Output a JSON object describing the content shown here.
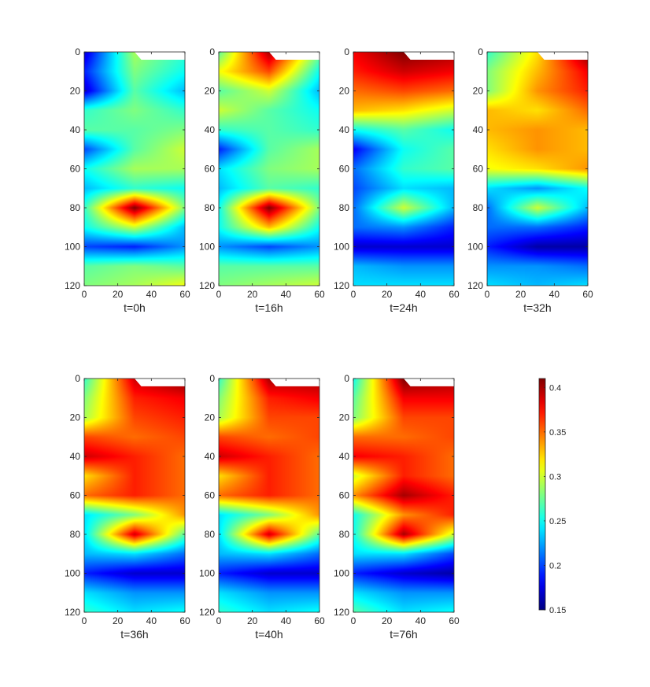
{
  "figure": {
    "colorbar": {
      "colormap": "jet",
      "min": 0.15,
      "max": 0.41,
      "ticks": [
        0.15,
        0.2,
        0.25,
        0.3,
        0.35,
        0.4
      ],
      "tick_labels": [
        "0.15",
        "0.2",
        "0.25",
        "0.3",
        "0.35",
        "0.4"
      ]
    }
  },
  "chart_data": [
    {
      "type": "heatmap",
      "panel": "t=0h",
      "title": "t=0h",
      "x": [
        0,
        30,
        60
      ],
      "y": [
        0,
        10,
        20,
        30,
        40,
        50,
        60,
        70,
        80,
        90,
        100,
        110,
        120
      ],
      "values": [
        [
          0.17,
          0.29,
          0.26
        ],
        [
          0.19,
          0.28,
          0.25
        ],
        [
          0.17,
          0.27,
          0.23
        ],
        [
          0.26,
          0.28,
          0.26
        ],
        [
          0.27,
          0.27,
          0.28
        ],
        [
          0.2,
          0.27,
          0.3
        ],
        [
          0.25,
          0.29,
          0.29
        ],
        [
          0.23,
          0.26,
          0.25
        ],
        [
          0.26,
          0.41,
          0.28
        ],
        [
          0.25,
          0.3,
          0.23
        ],
        [
          0.2,
          0.19,
          0.22
        ],
        [
          0.27,
          0.28,
          0.27
        ],
        [
          0.28,
          0.29,
          0.31
        ]
      ],
      "xlim": [
        0,
        60
      ],
      "ylim": [
        0,
        120
      ],
      "y_reversed": true,
      "xticks": [
        "0",
        "20",
        "40",
        "60"
      ],
      "yticks": [
        "0",
        "20",
        "40",
        "60",
        "80",
        "100",
        "120"
      ]
    },
    {
      "type": "heatmap",
      "panel": "t=16h",
      "title": "t=16h",
      "x": [
        0,
        30,
        60
      ],
      "y": [
        0,
        10,
        20,
        30,
        40,
        50,
        60,
        70,
        80,
        90,
        100,
        110,
        120
      ],
      "values": [
        [
          0.27,
          0.4,
          0.28
        ],
        [
          0.31,
          0.36,
          0.25
        ],
        [
          0.27,
          0.3,
          0.23
        ],
        [
          0.3,
          0.27,
          0.25
        ],
        [
          0.26,
          0.27,
          0.26
        ],
        [
          0.19,
          0.27,
          0.29
        ],
        [
          0.24,
          0.28,
          0.29
        ],
        [
          0.23,
          0.27,
          0.26
        ],
        [
          0.25,
          0.41,
          0.28
        ],
        [
          0.25,
          0.33,
          0.25
        ],
        [
          0.22,
          0.2,
          0.22
        ],
        [
          0.27,
          0.27,
          0.27
        ],
        [
          0.28,
          0.29,
          0.3
        ]
      ],
      "xlim": [
        0,
        60
      ],
      "ylim": [
        0,
        120
      ],
      "y_reversed": true,
      "xticks": [
        "0",
        "20",
        "40",
        "60"
      ],
      "yticks": [
        "0",
        "20",
        "40",
        "60",
        "80",
        "100",
        "120"
      ]
    },
    {
      "type": "heatmap",
      "panel": "t=24h",
      "title": "t=24h",
      "x": [
        0,
        30,
        60
      ],
      "y": [
        0,
        10,
        20,
        30,
        40,
        50,
        60,
        70,
        80,
        90,
        100,
        110,
        120
      ],
      "values": [
        [
          0.38,
          0.41,
          0.4
        ],
        [
          0.37,
          0.39,
          0.38
        ],
        [
          0.35,
          0.36,
          0.35
        ],
        [
          0.33,
          0.32,
          0.3
        ],
        [
          0.25,
          0.27,
          0.25
        ],
        [
          0.18,
          0.25,
          0.27
        ],
        [
          0.21,
          0.26,
          0.27
        ],
        [
          0.2,
          0.24,
          0.23
        ],
        [
          0.21,
          0.3,
          0.23
        ],
        [
          0.21,
          0.22,
          0.19
        ],
        [
          0.17,
          0.17,
          0.17
        ],
        [
          0.23,
          0.22,
          0.22
        ],
        [
          0.24,
          0.24,
          0.24
        ]
      ],
      "xlim": [
        0,
        60
      ],
      "ylim": [
        0,
        120
      ],
      "y_reversed": true,
      "xticks": [
        "0",
        "20",
        "40",
        "60"
      ],
      "yticks": [
        "0",
        "20",
        "40",
        "60",
        "80",
        "100",
        "120"
      ]
    },
    {
      "type": "heatmap",
      "panel": "t=32h",
      "title": "t=32h",
      "x": [
        0,
        30,
        60
      ],
      "y": [
        0,
        10,
        20,
        30,
        40,
        50,
        60,
        70,
        80,
        90,
        100,
        110,
        120
      ],
      "values": [
        [
          0.26,
          0.32,
          0.41
        ],
        [
          0.28,
          0.33,
          0.38
        ],
        [
          0.28,
          0.34,
          0.37
        ],
        [
          0.33,
          0.32,
          0.35
        ],
        [
          0.33,
          0.34,
          0.33
        ],
        [
          0.32,
          0.34,
          0.33
        ],
        [
          0.31,
          0.32,
          0.34
        ],
        [
          0.24,
          0.22,
          0.25
        ],
        [
          0.21,
          0.3,
          0.23
        ],
        [
          0.21,
          0.21,
          0.19
        ],
        [
          0.19,
          0.16,
          0.16
        ],
        [
          0.22,
          0.22,
          0.21
        ],
        [
          0.24,
          0.23,
          0.24
        ]
      ],
      "xlim": [
        0,
        60
      ],
      "ylim": [
        0,
        120
      ],
      "y_reversed": true,
      "xticks": [
        "0",
        "20",
        "40",
        "60"
      ],
      "yticks": [
        "0",
        "20",
        "40",
        "60",
        "80",
        "100",
        "120"
      ]
    },
    {
      "type": "heatmap",
      "panel": "t=36h",
      "title": "t=36h",
      "x": [
        0,
        30,
        60
      ],
      "y": [
        0,
        10,
        20,
        30,
        40,
        50,
        60,
        70,
        80,
        90,
        100,
        110,
        120
      ],
      "values": [
        [
          0.26,
          0.39,
          0.41
        ],
        [
          0.28,
          0.37,
          0.38
        ],
        [
          0.29,
          0.36,
          0.37
        ],
        [
          0.36,
          0.35,
          0.36
        ],
        [
          0.39,
          0.37,
          0.35
        ],
        [
          0.32,
          0.37,
          0.35
        ],
        [
          0.35,
          0.37,
          0.35
        ],
        [
          0.24,
          0.28,
          0.34
        ],
        [
          0.24,
          0.39,
          0.27
        ],
        [
          0.23,
          0.24,
          0.21
        ],
        [
          0.19,
          0.17,
          0.17
        ],
        [
          0.24,
          0.22,
          0.22
        ],
        [
          0.26,
          0.24,
          0.25
        ]
      ],
      "xlim": [
        0,
        60
      ],
      "ylim": [
        0,
        120
      ],
      "y_reversed": true,
      "xticks": [
        "0",
        "20",
        "40",
        "60"
      ],
      "yticks": [
        "0",
        "20",
        "40",
        "60",
        "80",
        "100",
        "120"
      ]
    },
    {
      "type": "heatmap",
      "panel": "t=40h",
      "title": "t=40h",
      "x": [
        0,
        30,
        60
      ],
      "y": [
        0,
        10,
        20,
        30,
        40,
        50,
        60,
        70,
        80,
        90,
        100,
        110,
        120
      ],
      "values": [
        [
          0.26,
          0.4,
          0.4
        ],
        [
          0.28,
          0.37,
          0.38
        ],
        [
          0.29,
          0.36,
          0.36
        ],
        [
          0.36,
          0.35,
          0.36
        ],
        [
          0.39,
          0.37,
          0.35
        ],
        [
          0.32,
          0.37,
          0.35
        ],
        [
          0.35,
          0.37,
          0.35
        ],
        [
          0.24,
          0.28,
          0.34
        ],
        [
          0.24,
          0.39,
          0.27
        ],
        [
          0.23,
          0.24,
          0.21
        ],
        [
          0.19,
          0.17,
          0.17
        ],
        [
          0.24,
          0.22,
          0.22
        ],
        [
          0.26,
          0.24,
          0.25
        ]
      ],
      "xlim": [
        0,
        60
      ],
      "ylim": [
        0,
        120
      ],
      "y_reversed": true,
      "xticks": [
        "0",
        "20",
        "40",
        "60"
      ],
      "yticks": [
        "0",
        "20",
        "40",
        "60",
        "80",
        "100",
        "120"
      ]
    },
    {
      "type": "heatmap",
      "panel": "t=76h",
      "title": "t=76h",
      "x": [
        0,
        30,
        60
      ],
      "y": [
        0,
        10,
        20,
        30,
        40,
        50,
        60,
        70,
        80,
        90,
        100,
        110,
        120
      ],
      "values": [
        [
          0.25,
          0.41,
          0.4
        ],
        [
          0.27,
          0.38,
          0.38
        ],
        [
          0.28,
          0.36,
          0.36
        ],
        [
          0.35,
          0.35,
          0.36
        ],
        [
          0.38,
          0.37,
          0.35
        ],
        [
          0.3,
          0.37,
          0.35
        ],
        [
          0.34,
          0.4,
          0.37
        ],
        [
          0.25,
          0.34,
          0.37
        ],
        [
          0.25,
          0.4,
          0.3
        ],
        [
          0.24,
          0.24,
          0.2
        ],
        [
          0.19,
          0.17,
          0.16
        ],
        [
          0.24,
          0.22,
          0.22
        ],
        [
          0.27,
          0.24,
          0.25
        ]
      ],
      "xlim": [
        0,
        60
      ],
      "ylim": [
        0,
        120
      ],
      "y_reversed": true,
      "xticks": [
        "0",
        "20",
        "40",
        "60"
      ],
      "yticks": [
        "0",
        "20",
        "40",
        "60",
        "80",
        "100",
        "120"
      ]
    }
  ]
}
